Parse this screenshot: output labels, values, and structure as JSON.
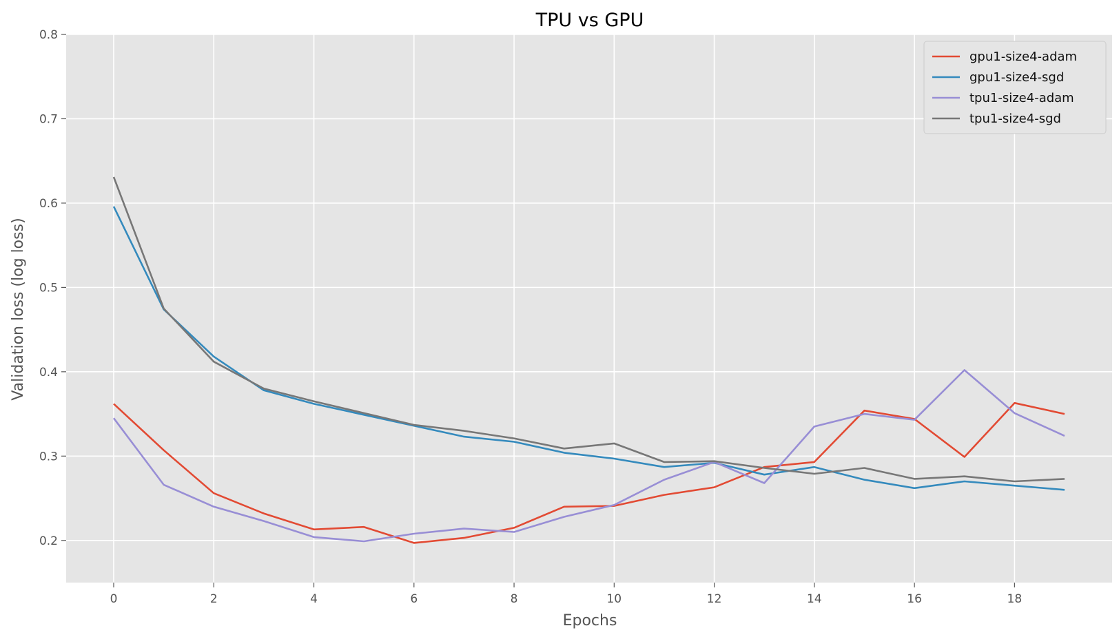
{
  "chart_data": {
    "type": "line",
    "title": "TPU vs GPU",
    "xlabel": "Epochs",
    "ylabel": "Validation loss (log loss)",
    "xlim": [
      -0.95,
      19.95
    ],
    "ylim": [
      0.15,
      0.8
    ],
    "xticks": [
      0,
      2,
      4,
      6,
      8,
      10,
      12,
      14,
      16,
      18
    ],
    "yticks": [
      0.2,
      0.3,
      0.4,
      0.5,
      0.6,
      0.7,
      0.8
    ],
    "grid": true,
    "legend_position": "top-right",
    "x": [
      0,
      1,
      2,
      3,
      4,
      5,
      6,
      7,
      8,
      9,
      10,
      11,
      12,
      13,
      14,
      15,
      16,
      17,
      18,
      19
    ],
    "series": [
      {
        "name": "gpu1-size4-adam",
        "color": "#E24A33",
        "values": [
          0.362,
          0.307,
          0.256,
          0.232,
          0.213,
          0.216,
          0.197,
          0.203,
          0.215,
          0.24,
          0.241,
          0.254,
          0.263,
          0.287,
          0.293,
          0.354,
          0.344,
          0.299,
          0.363,
          0.35
        ]
      },
      {
        "name": "gpu1-size4-sgd",
        "color": "#348ABD",
        "values": [
          0.596,
          0.474,
          0.418,
          0.378,
          0.362,
          0.349,
          0.336,
          0.323,
          0.317,
          0.304,
          0.297,
          0.287,
          0.292,
          0.278,
          0.287,
          0.272,
          0.262,
          0.27,
          0.265,
          0.26
        ]
      },
      {
        "name": "tpu1-size4-adam",
        "color": "#988ED5",
        "values": [
          0.345,
          0.266,
          0.24,
          0.223,
          0.204,
          0.199,
          0.208,
          0.214,
          0.21,
          0.228,
          0.242,
          0.272,
          0.293,
          0.268,
          0.335,
          0.35,
          0.343,
          0.402,
          0.351,
          0.324
        ]
      },
      {
        "name": "tpu1-size4-sgd",
        "color": "#777777",
        "values": [
          0.631,
          0.475,
          0.412,
          0.38,
          0.365,
          0.351,
          0.337,
          0.33,
          0.321,
          0.309,
          0.315,
          0.293,
          0.294,
          0.286,
          0.279,
          0.286,
          0.273,
          0.276,
          0.27,
          0.273
        ]
      }
    ]
  },
  "style": {
    "plot_background": "#E5E5E5",
    "grid_color": "#FFFFFF",
    "tick_color": "#555555"
  }
}
